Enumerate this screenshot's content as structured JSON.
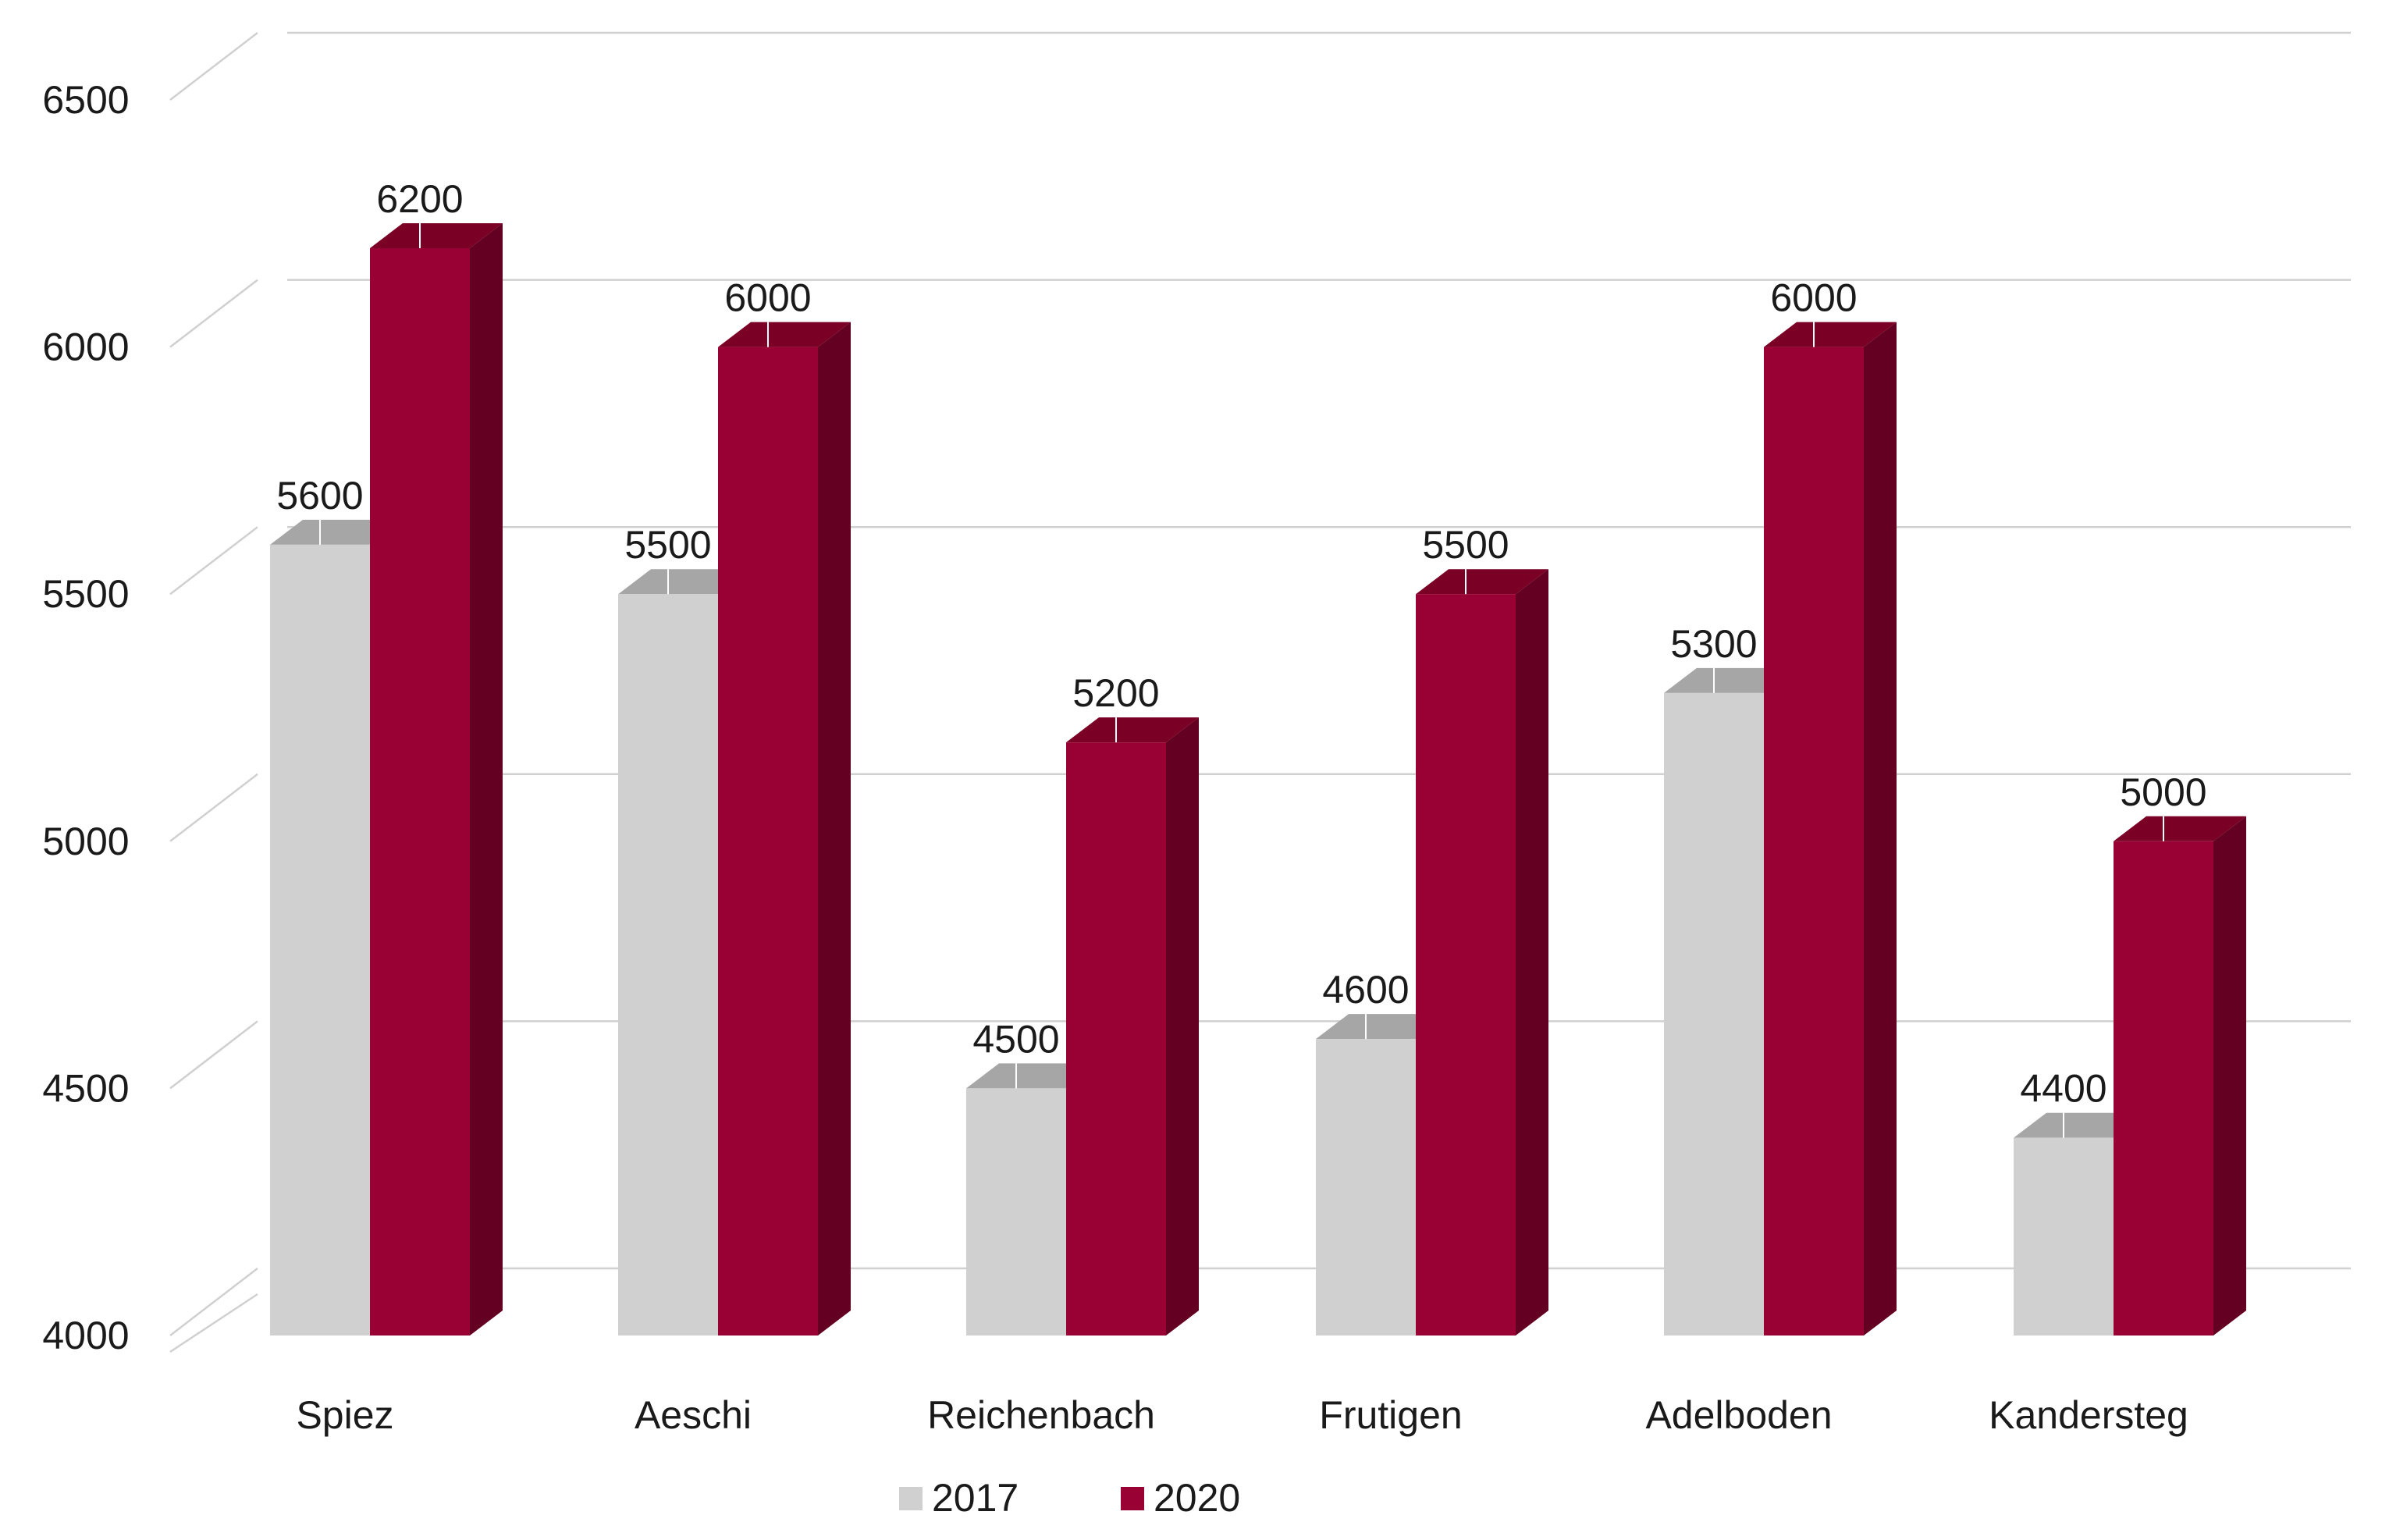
{
  "chart_data": {
    "type": "bar",
    "title": "",
    "xlabel": "",
    "ylabel": "",
    "categories": [
      "Spiez",
      "Aeschi",
      "Reichenbach",
      "Frutigen",
      "Adelboden",
      "Kandersteg"
    ],
    "series": [
      {
        "name": "2017",
        "values": [
          5600,
          5500,
          4500,
          4600,
          5300,
          4400
        ],
        "color": "#d0d0d0",
        "top_color": "#a6a6a6",
        "side_color": "#bcbcbc"
      },
      {
        "name": "2020",
        "values": [
          6200,
          6000,
          5200,
          5500,
          6000,
          5000
        ],
        "color": "#990033",
        "top_color": "#7a0026",
        "side_color": "#640022"
      }
    ],
    "ylim": [
      4000,
      6500
    ],
    "yticks": [
      4000,
      4500,
      5000,
      5500,
      6000,
      6500
    ],
    "grid": true,
    "style": "3d-clustered-column",
    "legend_position": "bottom",
    "data_labels": true
  }
}
